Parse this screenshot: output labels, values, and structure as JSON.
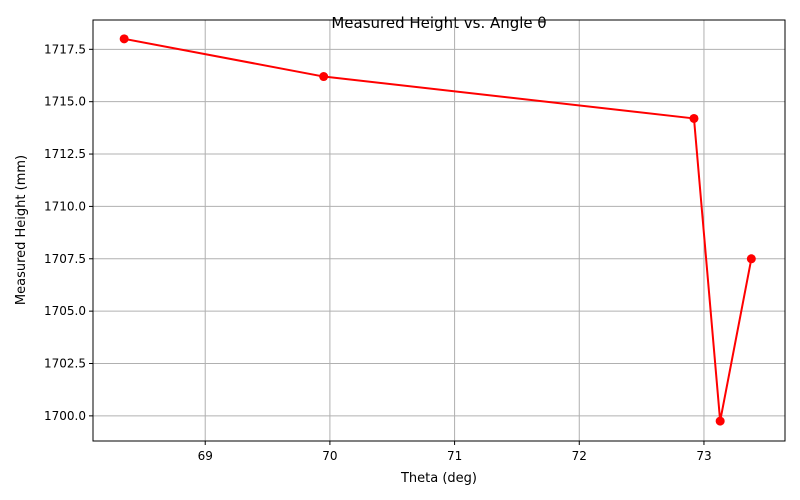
{
  "chart_data": {
    "type": "line",
    "title": "Measured Height vs. Angle θ",
    "xlabel": "Theta (deg)",
    "ylabel": "Measured Height (mm)",
    "xlim": [
      68.1,
      73.65
    ],
    "ylim": [
      1698.8,
      1718.9
    ],
    "xticks": [
      69,
      70,
      71,
      72,
      73
    ],
    "xtick_labels": [
      "69",
      "70",
      "71",
      "72",
      "73"
    ],
    "yticks": [
      1700.0,
      1702.5,
      1705.0,
      1707.5,
      1710.0,
      1712.5,
      1715.0,
      1717.5
    ],
    "ytick_labels": [
      "1700.0",
      "1702.5",
      "1705.0",
      "1707.5",
      "1710.0",
      "1712.5",
      "1715.0",
      "1717.5"
    ],
    "grid": true,
    "series": [
      {
        "color": "#ff0000",
        "marker": "circle",
        "x": [
          68.35,
          69.95,
          72.92,
          73.13,
          73.38
        ],
        "y": [
          1718.0,
          1716.2,
          1714.2,
          1699.75,
          1707.5
        ]
      }
    ]
  }
}
